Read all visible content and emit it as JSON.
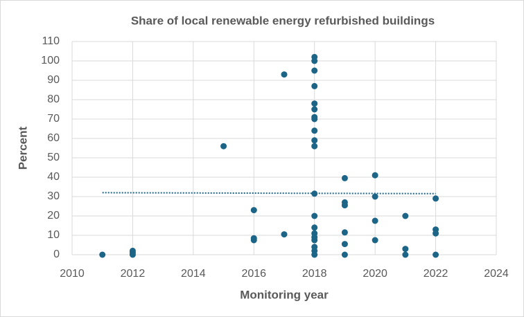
{
  "chart_data": {
    "type": "scatter",
    "title": "Share of local renewable energy refurbished buildings",
    "x_label": "Monitoring year",
    "y_label": "Percent",
    "x": [
      2011,
      2012,
      2012,
      2012,
      2015,
      2016,
      2016,
      2016,
      2017,
      2017,
      2018,
      2018,
      2018,
      2018,
      2018,
      2018,
      2018,
      2018,
      2018,
      2018,
      2018,
      2018,
      2018,
      2018,
      2018,
      2018,
      2018,
      2018,
      2018,
      2018,
      2019,
      2019,
      2019,
      2019,
      2019,
      2019,
      2020,
      2020,
      2020,
      2020,
      2021,
      2021,
      2021,
      2022,
      2022,
      2022,
      2022
    ],
    "values": [
      0,
      2,
      1,
      0,
      56,
      23,
      8.5,
      7.5,
      93,
      10.5,
      102,
      100,
      95,
      87,
      78,
      75,
      71,
      70,
      64,
      59,
      56,
      31.5,
      20,
      14,
      11,
      9,
      7.5,
      4,
      2,
      0,
      39.5,
      27,
      25.5,
      11.5,
      5.5,
      0,
      41,
      30,
      17.5,
      7.5,
      20,
      3,
      0,
      29,
      13,
      11,
      0
    ],
    "color": "#1c6587",
    "trendline": {
      "x": [
        2011,
        2022
      ],
      "values": [
        32,
        31.5
      ]
    },
    "xlim": [
      2010,
      2024
    ],
    "xticks": [
      2010,
      2012,
      2014,
      2016,
      2018,
      2020,
      2022,
      2024
    ],
    "ylim": [
      0,
      110
    ],
    "yticks": [
      0,
      10,
      20,
      30,
      40,
      50,
      60,
      70,
      80,
      90,
      100,
      110
    ],
    "grid": true
  }
}
